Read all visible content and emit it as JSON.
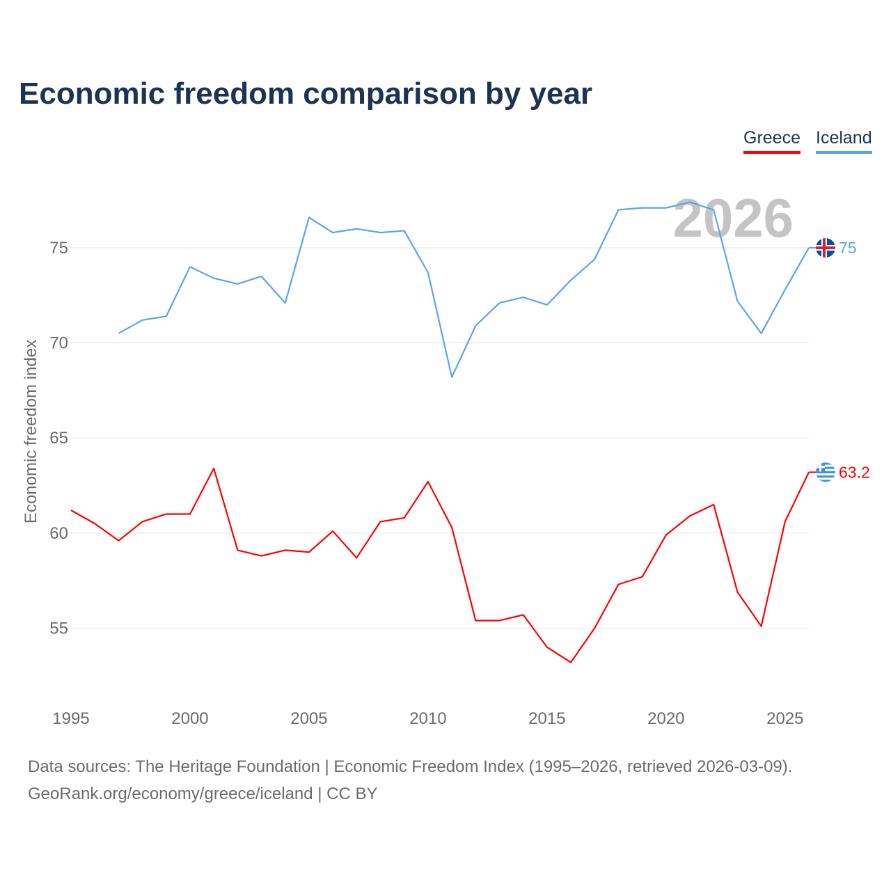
{
  "title": "Economic freedom comparison by year",
  "legend": [
    {
      "label": "Greece",
      "color": "#ff0000"
    },
    {
      "label": "Iceland",
      "color": "#5ba4ea"
    }
  ],
  "footer": {
    "line1": "Data sources: The Heritage Foundation | Economic Freedom Index (1995–2026, retrieved 2026-03-09).",
    "line2": "GeoRank.org/economy/greece/iceland | CC BY"
  },
  "chart_data": {
    "type": "line",
    "title": "Economic freedom comparison by year",
    "xlabel": "",
    "ylabel": "Economic freedom index",
    "year_watermark": "2026",
    "xlim": [
      1995,
      2026
    ],
    "ylim": [
      51.5,
      79
    ],
    "xticks": [
      "1995",
      "2000",
      "2005",
      "2010",
      "2015",
      "2020",
      "2025"
    ],
    "yticks": [
      "55",
      "60",
      "65",
      "70",
      "75"
    ],
    "grid": true,
    "legend_position": "top-right",
    "series": [
      {
        "name": "Greece",
        "color": "#ff0000",
        "end_label": "63.2",
        "flag": "greece-flag",
        "x": [
          1995,
          1996,
          1997,
          1998,
          1999,
          2000,
          2001,
          2002,
          2003,
          2004,
          2005,
          2006,
          2007,
          2008,
          2009,
          2010,
          2011,
          2012,
          2013,
          2014,
          2015,
          2016,
          2017,
          2018,
          2019,
          2020,
          2021,
          2022,
          2023,
          2024,
          2025,
          2026
        ],
        "values": [
          61.2,
          60.5,
          59.6,
          60.6,
          61.0,
          61.0,
          63.4,
          59.1,
          58.8,
          59.1,
          59.0,
          60.1,
          58.7,
          60.6,
          60.8,
          62.7,
          60.3,
          55.4,
          55.4,
          55.7,
          54.0,
          53.2,
          55.0,
          57.3,
          57.7,
          59.9,
          60.9,
          61.5,
          56.9,
          55.1,
          60.6,
          63.2
        ]
      },
      {
        "name": "Iceland",
        "color": "#5ba4ea",
        "end_label": "75",
        "flag": "iceland-flag",
        "x": [
          1997,
          1998,
          1999,
          2000,
          2001,
          2002,
          2003,
          2004,
          2005,
          2006,
          2007,
          2008,
          2009,
          2010,
          2011,
          2012,
          2013,
          2014,
          2015,
          2016,
          2017,
          2018,
          2019,
          2020,
          2021,
          2022,
          2023,
          2024,
          2025,
          2026
        ],
        "values": [
          70.5,
          71.2,
          71.4,
          74.0,
          73.4,
          73.1,
          73.5,
          72.1,
          76.6,
          75.8,
          76.0,
          75.8,
          75.9,
          73.7,
          68.2,
          70.9,
          72.1,
          72.4,
          72.0,
          73.3,
          74.4,
          77.0,
          77.1,
          77.1,
          77.4,
          77.0,
          72.2,
          70.5,
          72.8,
          75.0
        ]
      }
    ]
  }
}
